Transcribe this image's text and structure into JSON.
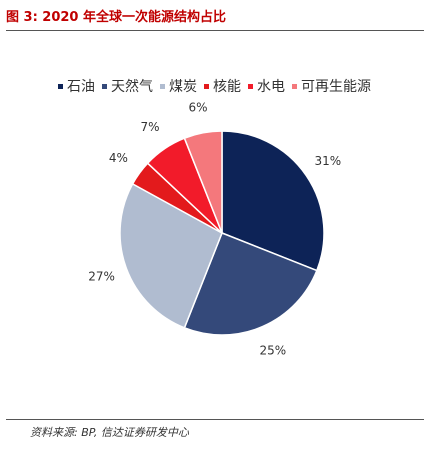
{
  "figure": {
    "title": "图 3:  2020 年全球一次能源结构占比",
    "source": "资料来源: BP, 信达证券研发中心"
  },
  "chart_data": {
    "type": "pie",
    "title": "",
    "legend_position": "top",
    "start_angle_deg": 0,
    "direction": "clockwise",
    "slices": [
      {
        "name": "石油",
        "value": 31,
        "label": "31%",
        "color": "#0d2357"
      },
      {
        "name": "天然气",
        "value": 25,
        "label": "25%",
        "color": "#34497a"
      },
      {
        "name": "煤炭",
        "value": 27,
        "label": "27%",
        "color": "#b0bcd0"
      },
      {
        "name": "核能",
        "value": 4,
        "label": "4%",
        "color": "#e31a1c"
      },
      {
        "name": "水电",
        "value": 7,
        "label": "7%",
        "color": "#f21b2a"
      },
      {
        "name": "可再生能源",
        "value": 6,
        "label": "6%",
        "color": "#f4787c"
      }
    ]
  }
}
